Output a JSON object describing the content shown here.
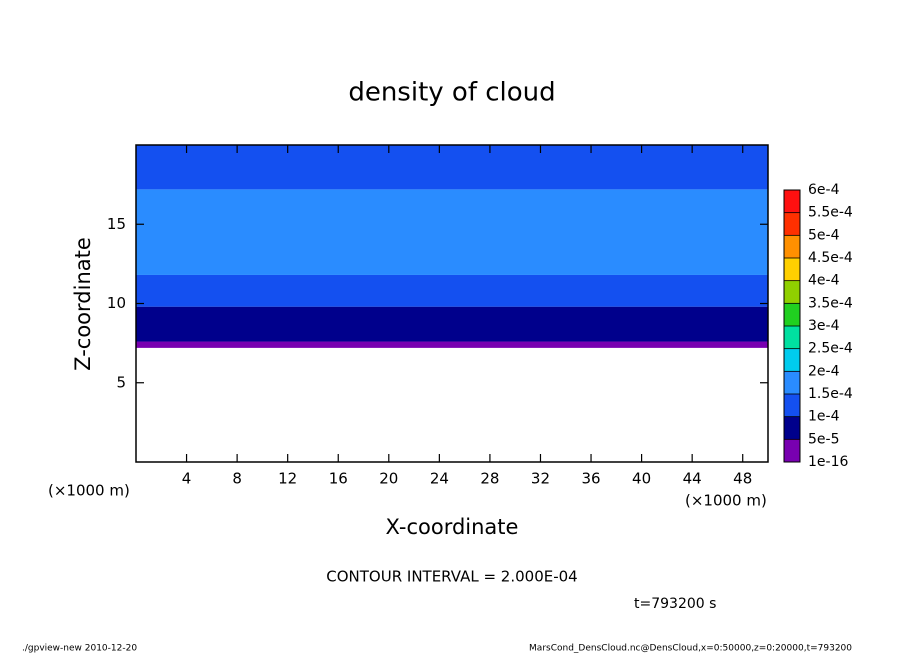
{
  "chart_data": {
    "type": "contour",
    "title": "density of cloud",
    "x_label": "X-coordinate",
    "y_label": "Z-coordinate",
    "x_unit_label": "(×1000 m)",
    "y_unit_label": "(×1000 m)",
    "contour_note": "CONTOUR INTERVAL = 2.000E-04",
    "time_label": "t=793200 s",
    "footer_left": "./gpview-new  2010-12-20",
    "footer_right": "MarsCond_DensCloud.nc@DensCloud,x=0:50000,z=0:20000,t=793200",
    "xlim": [
      0,
      50
    ],
    "ylim": [
      0,
      20
    ],
    "xticks": [
      4,
      8,
      12,
      16,
      20,
      24,
      28,
      32,
      36,
      40,
      44,
      48
    ],
    "yticks": [
      5,
      10,
      15
    ],
    "field": {
      "z_edges": [
        7.2,
        7.6,
        9.8,
        11.8,
        17.2,
        20
      ],
      "values": [
        2e-05,
        7e-05,
        0.00012,
        0.00016,
        0.00013
      ]
    },
    "colorbar": {
      "levels": [
        {
          "value": 1e-16,
          "label": "1e-16"
        },
        {
          "value": 5e-05,
          "label": "5e-5"
        },
        {
          "value": 0.0001,
          "label": "1e-4"
        },
        {
          "value": 0.00015,
          "label": "1.5e-4"
        },
        {
          "value": 0.0002,
          "label": "2e-4"
        },
        {
          "value": 0.00025,
          "label": "2.5e-4"
        },
        {
          "value": 0.0003,
          "label": "3e-4"
        },
        {
          "value": 0.00035,
          "label": "3.5e-4"
        },
        {
          "value": 0.0004,
          "label": "4e-4"
        },
        {
          "value": 0.00045,
          "label": "4.5e-4"
        },
        {
          "value": 0.0005,
          "label": "5e-4"
        },
        {
          "value": 0.00055,
          "label": "5.5e-4"
        },
        {
          "value": 0.0006,
          "label": "6e-4"
        }
      ],
      "colors": [
        "#7800b0",
        "#00008c",
        "#1450f0",
        "#2a8cff",
        "#00ccee",
        "#00e0a0",
        "#20d020",
        "#90d000",
        "#ffd000",
        "#ff9000",
        "#ff3000",
        "#ff1010",
        "#ff9090"
      ]
    }
  }
}
